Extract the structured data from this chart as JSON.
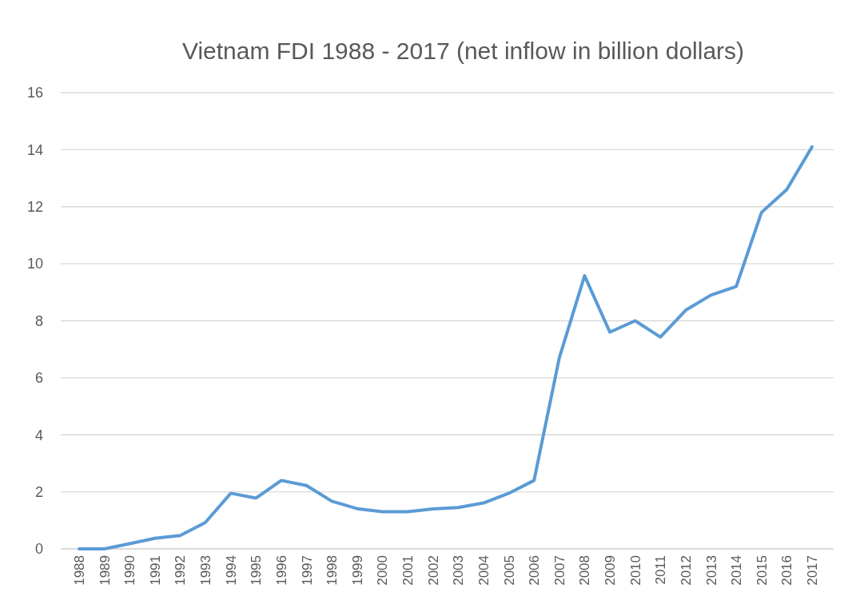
{
  "chart_data": {
    "type": "line",
    "title": "Vietnam FDI 1988 - 2017 (net inflow in billion dollars)",
    "categories": [
      "1988",
      "1989",
      "1990",
      "1991",
      "1992",
      "1993",
      "1994",
      "1995",
      "1996",
      "1997",
      "1998",
      "1999",
      "2000",
      "2001",
      "2002",
      "2003",
      "2004",
      "2005",
      "2006",
      "2007",
      "2008",
      "2009",
      "2010",
      "2011",
      "2012",
      "2013",
      "2014",
      "2015",
      "2016",
      "2017"
    ],
    "series": [
      {
        "color": "#5b9bd5",
        "values": [
          0,
          0,
          0.18,
          0.37,
          0.47,
          0.93,
          1.95,
          1.78,
          2.4,
          2.22,
          1.67,
          1.41,
          1.3,
          1.3,
          1.4,
          1.45,
          1.61,
          1.95,
          2.4,
          6.7,
          9.58,
          7.6,
          8.0,
          7.43,
          8.37,
          8.9,
          9.2,
          11.8,
          12.6,
          14.1
        ]
      }
    ],
    "ylim": [
      0,
      16
    ],
    "yticks": [
      0,
      2,
      4,
      6,
      8,
      10,
      12,
      14,
      16
    ],
    "grid": "y",
    "marker": "none",
    "line_style": "solid"
  }
}
